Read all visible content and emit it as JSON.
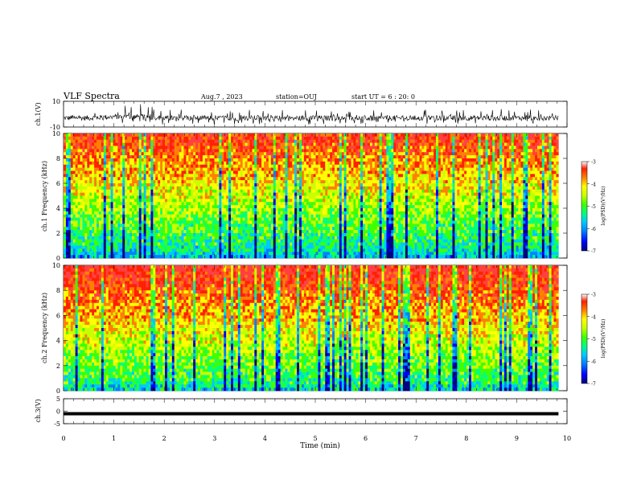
{
  "header": {
    "title": "VLF Spectra",
    "date": "Aug.7 , 2023",
    "station": "station=OUJ",
    "start": "start UT = 6 : 20: 0"
  },
  "colors": {
    "colormap": [
      "#000080",
      "#0000ff",
      "#0080ff",
      "#00c8ff",
      "#00ff80",
      "#40ff00",
      "#c8ff00",
      "#ffff00",
      "#ff8000",
      "#ff2000",
      "#ff4040"
    ],
    "trace": "#000000",
    "background": "#ffffff"
  },
  "chart_data": [
    {
      "type": "line",
      "panel": "ch1-waveform",
      "ylabel": "ch.1(V)",
      "ylim": [
        -10,
        10
      ],
      "yticks": [
        "10",
        "-10"
      ],
      "xlim": [
        0,
        9.83
      ],
      "x": [
        0,
        0.5,
        1,
        1.5,
        2,
        2.5,
        3,
        3.5,
        4,
        4.5,
        5,
        5.5,
        6,
        6.5,
        7,
        7.5,
        8,
        8.5,
        9,
        9.5,
        9.83
      ],
      "y_mean": [
        -3,
        -3,
        -2,
        -2,
        -3,
        -3,
        -3,
        -3,
        -3,
        -3,
        -3,
        -3,
        -3,
        -3,
        -3,
        -3,
        -3,
        -3,
        -3,
        -3,
        -3
      ],
      "y_envelope": [
        7,
        6,
        9,
        10,
        8,
        6,
        8,
        7,
        7,
        6,
        8,
        6,
        7,
        6,
        7,
        6,
        7,
        7,
        7,
        8,
        6
      ]
    },
    {
      "type": "heatmap",
      "panel": "ch1-spectrogram",
      "ylabel": "ch.1 Frequency (kHz)",
      "ylim": [
        0,
        10
      ],
      "yticks": [
        "0",
        "2",
        "4",
        "6",
        "8",
        "10"
      ],
      "xlim": [
        0,
        9.83
      ],
      "colorbar": {
        "label": "log(PSD)(V²/Hz)",
        "range": [
          -7,
          -3
        ],
        "ticks": [
          "-3",
          "-4",
          "-5",
          "-6",
          "-7"
        ]
      }
    },
    {
      "type": "heatmap",
      "panel": "ch2-spectrogram",
      "ylabel": "ch.2 Frequency (kHz)",
      "ylim": [
        0,
        10
      ],
      "yticks": [
        "0",
        "2",
        "4",
        "6",
        "8",
        "10"
      ],
      "xlim": [
        0,
        9.83
      ],
      "colorbar": {
        "label": "log(PSD)(V²/Hz)",
        "range": [
          -7,
          -3
        ],
        "ticks": [
          "-3",
          "-4",
          "-5",
          "-6",
          "-7"
        ]
      }
    },
    {
      "type": "line",
      "panel": "ch3-waveform",
      "ylabel": "ch.3(V)",
      "ylim": [
        -5,
        5
      ],
      "yticks": [
        "5",
        "0",
        "-5"
      ],
      "xlim": [
        0,
        9.83
      ],
      "x": [
        0,
        9.83
      ],
      "y": [
        -1,
        -1
      ]
    }
  ],
  "x_axis": {
    "label": "Time (min)",
    "ticks": [
      "0",
      "1",
      "2",
      "3",
      "4",
      "5",
      "6",
      "7",
      "8",
      "9",
      "10"
    ],
    "range": [
      0,
      10
    ]
  }
}
